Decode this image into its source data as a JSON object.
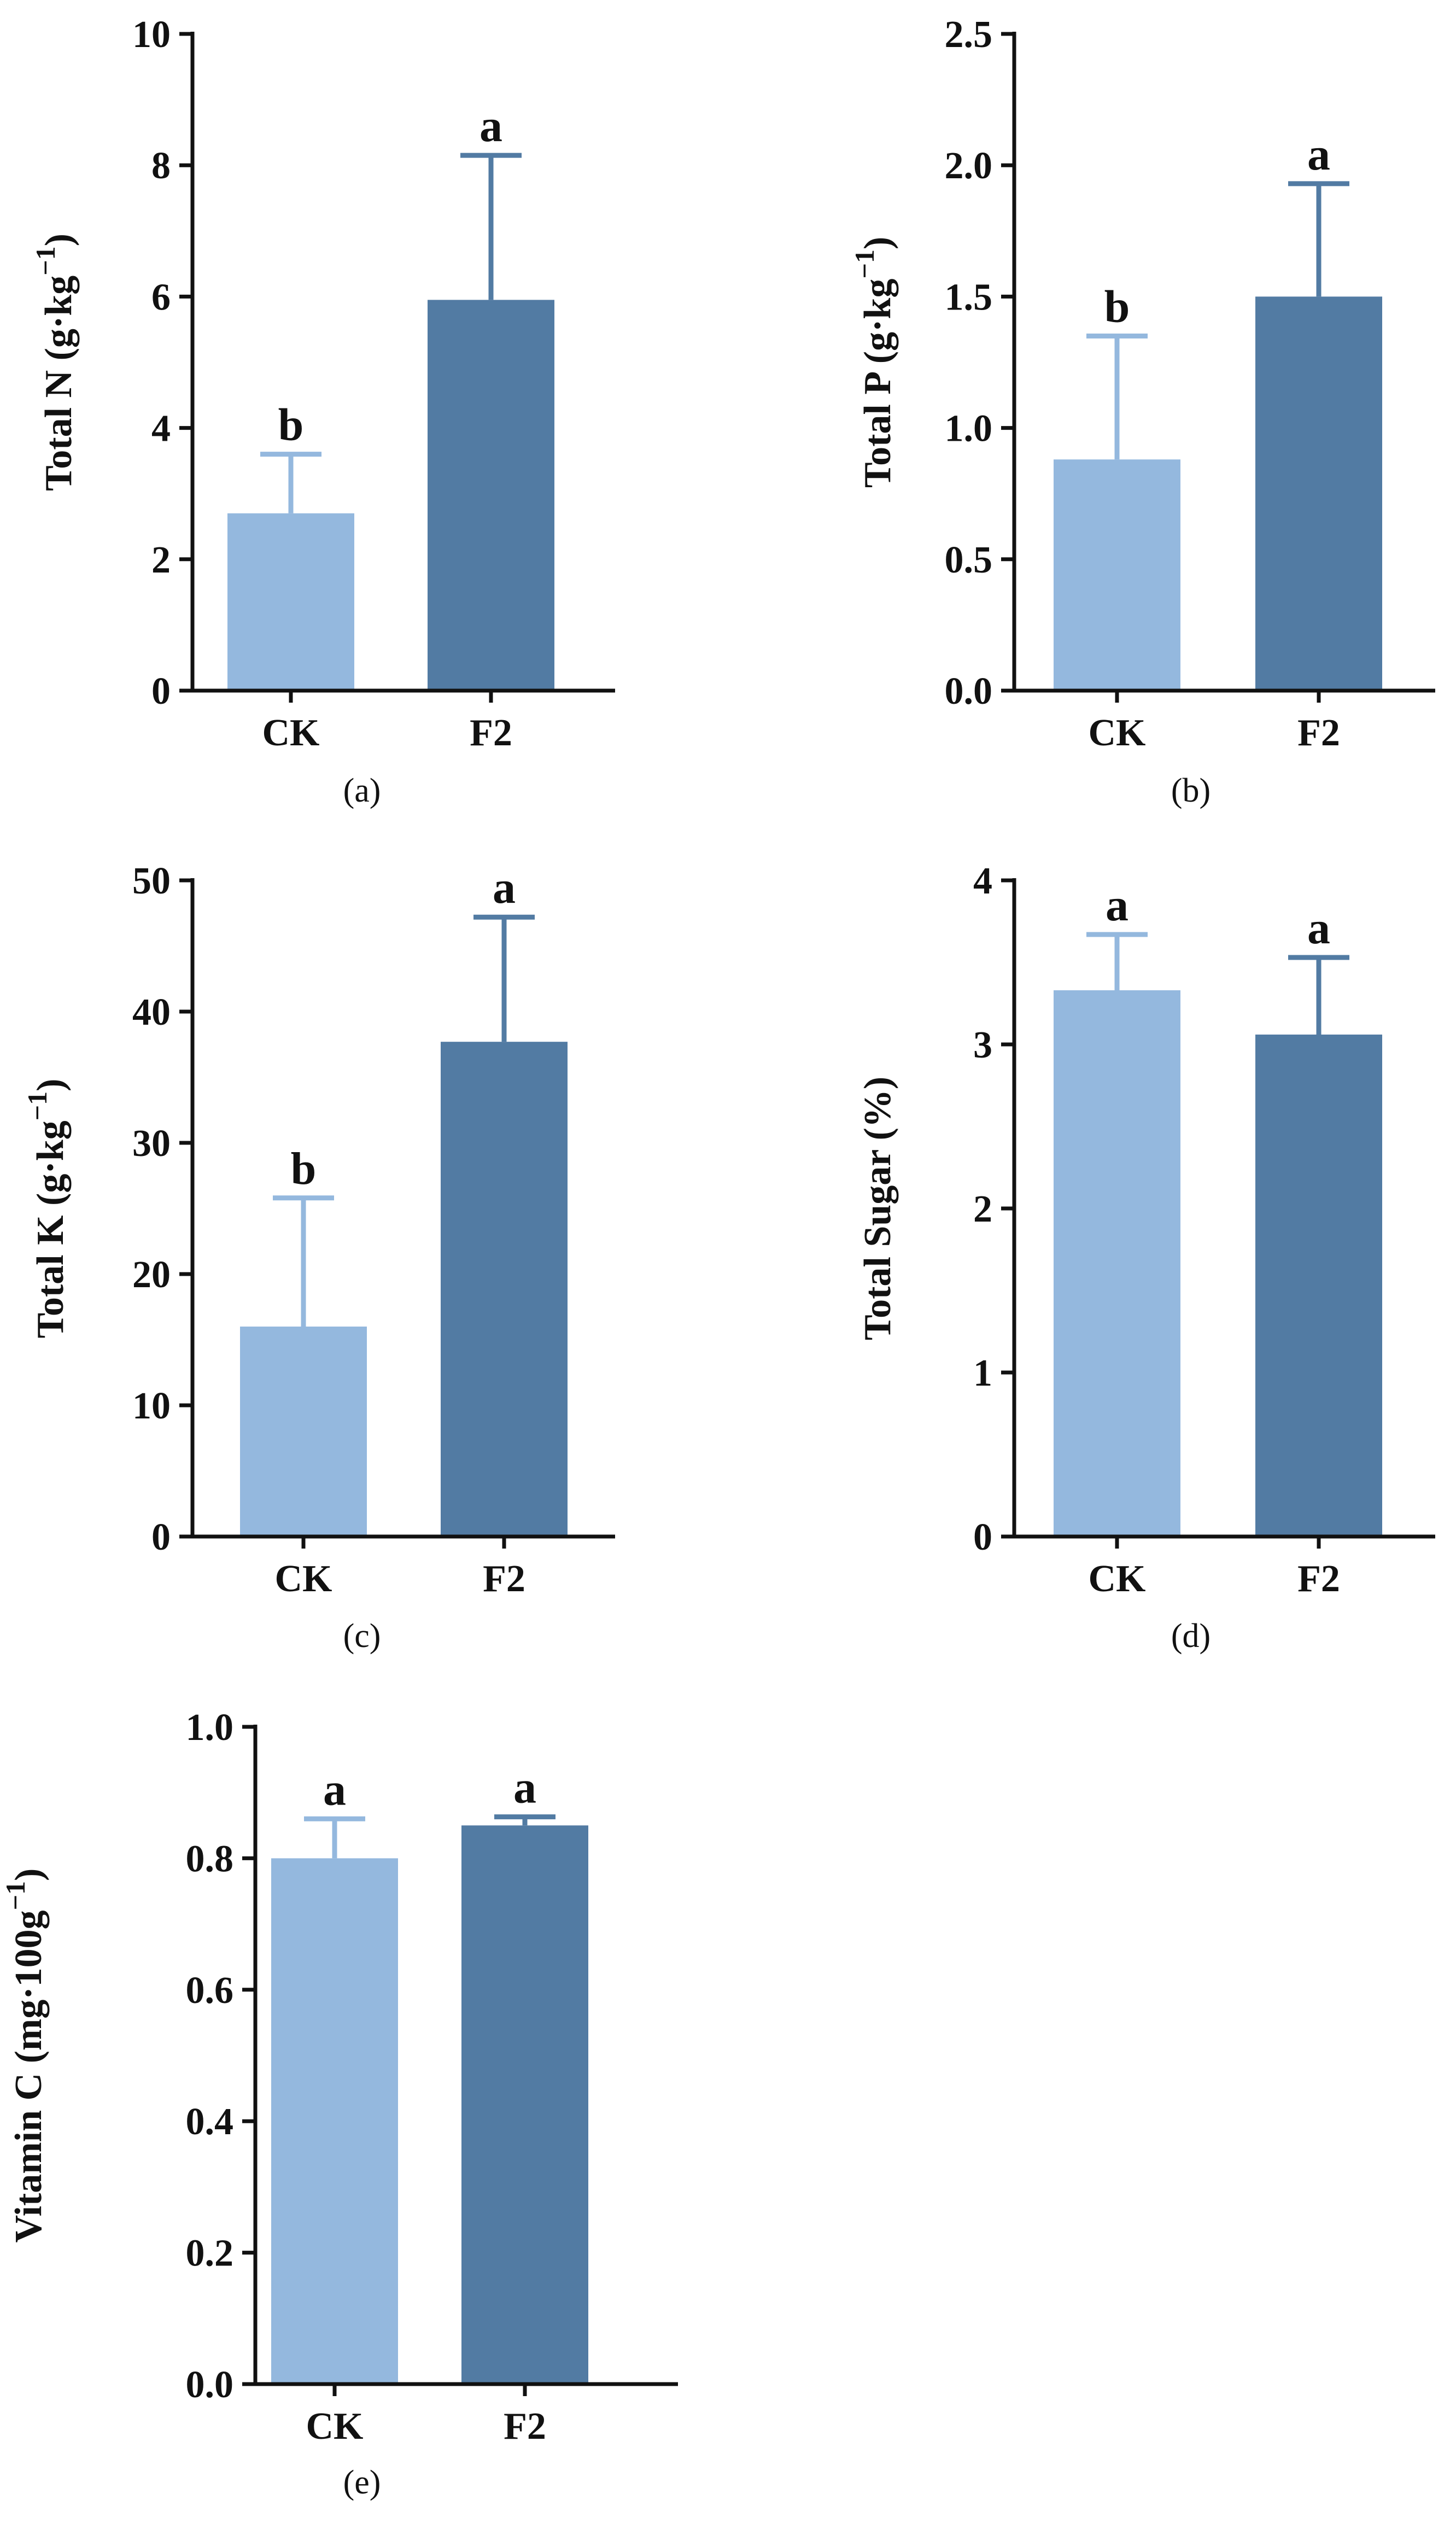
{
  "colors": {
    "ck": "#94b8de",
    "f2": "#527ba3",
    "axis": "#111111"
  },
  "chart_data": [
    {
      "panel": "(a)",
      "type": "bar",
      "categories": [
        "CK",
        "F2"
      ],
      "values": [
        2.7,
        5.95
      ],
      "errors": [
        0.9,
        2.2
      ],
      "sig": [
        "b",
        "a"
      ],
      "ylabel": "Total N (g·kg",
      "ylabel_sup": "−1",
      "ylabel_end": ")",
      "ylim": [
        0,
        10
      ],
      "yticks": [
        0,
        2,
        4,
        6,
        8,
        10
      ],
      "ytick_labels": [
        "0",
        "2",
        "4",
        "6",
        "8",
        "10"
      ]
    },
    {
      "panel": "(b)",
      "type": "bar",
      "categories": [
        "CK",
        "F2"
      ],
      "values": [
        0.88,
        1.5
      ],
      "errors": [
        0.47,
        0.43
      ],
      "sig": [
        "b",
        "a"
      ],
      "ylabel": "Total P (g·kg",
      "ylabel_sup": "−1",
      "ylabel_end": ")",
      "ylim": [
        0,
        2.5
      ],
      "yticks": [
        0,
        0.5,
        1.0,
        1.5,
        2.0,
        2.5
      ],
      "ytick_labels": [
        "0.0",
        "0.5",
        "1.0",
        "1.5",
        "2.0",
        "2.5"
      ]
    },
    {
      "panel": "(c)",
      "type": "bar",
      "categories": [
        "CK",
        "F2"
      ],
      "values": [
        16,
        37.7
      ],
      "errors": [
        9.8,
        9.5
      ],
      "sig": [
        "b",
        "a"
      ],
      "ylabel": "Total K (g·kg",
      "ylabel_sup": "−1",
      "ylabel_end": ")",
      "ylim": [
        0,
        50
      ],
      "yticks": [
        0,
        10,
        20,
        30,
        40,
        50
      ],
      "ytick_labels": [
        "0",
        "10",
        "20",
        "30",
        "40",
        "50"
      ]
    },
    {
      "panel": "(d)",
      "type": "bar",
      "categories": [
        "CK",
        "F2"
      ],
      "values": [
        3.33,
        3.06
      ],
      "errors": [
        0.34,
        0.47
      ],
      "sig": [
        "a",
        "a"
      ],
      "ylabel": "Total Sugar (%)",
      "ylabel_sup": "",
      "ylabel_end": "",
      "ylim": [
        0,
        4
      ],
      "yticks": [
        0,
        1,
        2,
        3,
        4
      ],
      "ytick_labels": [
        "0",
        "1",
        "2",
        "3",
        "4"
      ]
    },
    {
      "panel": "(e)",
      "type": "bar",
      "categories": [
        "CK",
        "F2"
      ],
      "values": [
        0.8,
        0.85
      ],
      "errors": [
        0.06,
        0.013
      ],
      "sig": [
        "a",
        "a"
      ],
      "ylabel": "Vitamin C (mg·100g",
      "ylabel_sup": "−1",
      "ylabel_end": ")",
      "ylim": [
        0,
        1.0
      ],
      "yticks": [
        0,
        0.2,
        0.4,
        0.6,
        0.8,
        1.0
      ],
      "ytick_labels": [
        "0.0",
        "0.2",
        "0.4",
        "0.6",
        "0.8",
        "1.0"
      ]
    }
  ]
}
